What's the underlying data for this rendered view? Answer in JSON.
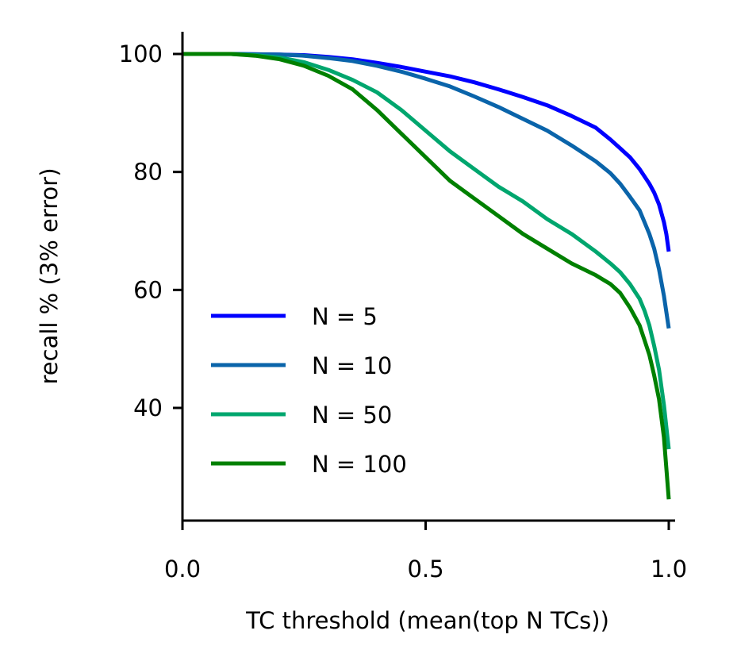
{
  "chart_data": {
    "type": "line",
    "title": "",
    "xlabel": "TC threshold (mean(top N TCs))",
    "ylabel": "recall % (3% error)",
    "xlim": [
      0.0,
      1.0
    ],
    "ylim": [
      22,
      104
    ],
    "xticks": [
      {
        "value": 0.0,
        "label": "0.0"
      },
      {
        "value": 0.5,
        "label": "0.5"
      },
      {
        "value": 1.0,
        "label": "1.0"
      }
    ],
    "yticks": [
      {
        "value": 40,
        "label": "40"
      },
      {
        "value": 60,
        "label": "60"
      },
      {
        "value": 80,
        "label": "80"
      },
      {
        "value": 100,
        "label": "100"
      }
    ],
    "grid": false,
    "legend_position": "lower-left",
    "series": [
      {
        "name": "N = 5",
        "color": "#0000ff",
        "points": [
          [
            0.0,
            100
          ],
          [
            0.1,
            100
          ],
          [
            0.2,
            99.9
          ],
          [
            0.25,
            99.8
          ],
          [
            0.3,
            99.5
          ],
          [
            0.35,
            99.1
          ],
          [
            0.4,
            98.5
          ],
          [
            0.45,
            97.8
          ],
          [
            0.5,
            97.0
          ],
          [
            0.55,
            96.2
          ],
          [
            0.6,
            95.2
          ],
          [
            0.65,
            94.0
          ],
          [
            0.7,
            92.7
          ],
          [
            0.75,
            91.3
          ],
          [
            0.8,
            89.5
          ],
          [
            0.85,
            87.5
          ],
          [
            0.88,
            85.5
          ],
          [
            0.9,
            84.0
          ],
          [
            0.92,
            82.5
          ],
          [
            0.94,
            80.5
          ],
          [
            0.96,
            78.0
          ],
          [
            0.97,
            76.5
          ],
          [
            0.98,
            74.5
          ],
          [
            0.99,
            71.5
          ],
          [
            0.995,
            69.5
          ],
          [
            1.0,
            66.5
          ]
        ]
      },
      {
        "name": "N = 10",
        "color": "#0a64aa",
        "points": [
          [
            0.0,
            100
          ],
          [
            0.1,
            100
          ],
          [
            0.2,
            99.9
          ],
          [
            0.25,
            99.7
          ],
          [
            0.3,
            99.3
          ],
          [
            0.35,
            98.8
          ],
          [
            0.4,
            98.0
          ],
          [
            0.45,
            97.0
          ],
          [
            0.5,
            95.8
          ],
          [
            0.55,
            94.5
          ],
          [
            0.6,
            92.8
          ],
          [
            0.65,
            91.0
          ],
          [
            0.7,
            89.0
          ],
          [
            0.75,
            87.0
          ],
          [
            0.8,
            84.5
          ],
          [
            0.85,
            81.8
          ],
          [
            0.88,
            79.8
          ],
          [
            0.9,
            78.0
          ],
          [
            0.92,
            75.8
          ],
          [
            0.94,
            73.5
          ],
          [
            0.95,
            71.5
          ],
          [
            0.96,
            69.5
          ],
          [
            0.97,
            67.0
          ],
          [
            0.98,
            63.5
          ],
          [
            0.99,
            59.0
          ],
          [
            1.0,
            53.5
          ]
        ]
      },
      {
        "name": "N = 50",
        "color": "#00a66e",
        "points": [
          [
            0.0,
            100
          ],
          [
            0.1,
            100
          ],
          [
            0.15,
            99.8
          ],
          [
            0.2,
            99.4
          ],
          [
            0.25,
            98.6
          ],
          [
            0.3,
            97.3
          ],
          [
            0.35,
            95.6
          ],
          [
            0.4,
            93.5
          ],
          [
            0.45,
            90.5
          ],
          [
            0.5,
            87.0
          ],
          [
            0.55,
            83.5
          ],
          [
            0.6,
            80.5
          ],
          [
            0.65,
            77.5
          ],
          [
            0.7,
            75.0
          ],
          [
            0.75,
            72.0
          ],
          [
            0.8,
            69.5
          ],
          [
            0.85,
            66.5
          ],
          [
            0.88,
            64.5
          ],
          [
            0.9,
            63.0
          ],
          [
            0.92,
            61.0
          ],
          [
            0.94,
            58.5
          ],
          [
            0.95,
            56.5
          ],
          [
            0.96,
            54.0
          ],
          [
            0.97,
            50.5
          ],
          [
            0.98,
            46.5
          ],
          [
            0.99,
            40.5
          ],
          [
            1.0,
            33.0
          ]
        ]
      },
      {
        "name": "N = 100",
        "color": "#008000",
        "points": [
          [
            0.0,
            100
          ],
          [
            0.1,
            100
          ],
          [
            0.15,
            99.7
          ],
          [
            0.2,
            99.1
          ],
          [
            0.25,
            98.0
          ],
          [
            0.3,
            96.3
          ],
          [
            0.35,
            94.0
          ],
          [
            0.4,
            90.5
          ],
          [
            0.45,
            86.5
          ],
          [
            0.5,
            82.5
          ],
          [
            0.55,
            78.5
          ],
          [
            0.6,
            75.5
          ],
          [
            0.65,
            72.5
          ],
          [
            0.7,
            69.5
          ],
          [
            0.75,
            67.0
          ],
          [
            0.8,
            64.5
          ],
          [
            0.85,
            62.5
          ],
          [
            0.88,
            61.0
          ],
          [
            0.9,
            59.5
          ],
          [
            0.92,
            57.0
          ],
          [
            0.94,
            54.0
          ],
          [
            0.95,
            51.5
          ],
          [
            0.96,
            49.0
          ],
          [
            0.97,
            45.5
          ],
          [
            0.98,
            41.5
          ],
          [
            0.99,
            35.0
          ],
          [
            1.0,
            24.5
          ]
        ]
      }
    ]
  }
}
